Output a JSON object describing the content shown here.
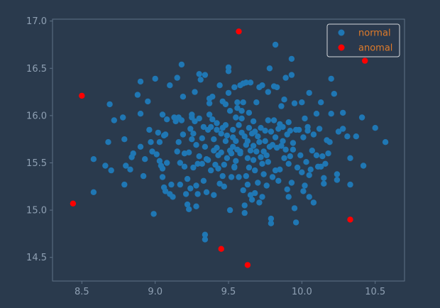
{
  "chart_data": {
    "type": "scatter",
    "xlim": [
      8.3,
      10.7
    ],
    "ylim": [
      14.25,
      17.02
    ],
    "x_ticks": [
      8.5,
      9.0,
      9.5,
      10.0,
      10.5
    ],
    "x_tick_labels": [
      "8.5",
      "9.0",
      "9.5",
      "10.0",
      "10.5"
    ],
    "y_ticks": [
      14.5,
      15.0,
      15.5,
      16.0,
      16.5,
      17.0
    ],
    "y_tick_labels": [
      "14.5",
      "15.0",
      "15.5",
      "16.0",
      "16.5",
      "17.0"
    ],
    "grid": false,
    "legend_position": "top-right",
    "colors": {
      "background": "#2a3a4d",
      "axes": "#5f7186",
      "tick_text": "#8fa0b3",
      "normal": "#1f77b4",
      "anomal": "#ff0000",
      "legend_text": "#e07b2a"
    },
    "series": [
      {
        "name": "normal",
        "color": "#1f77b4",
        "points": [
          [
            8.58,
            15.54
          ],
          [
            8.58,
            15.19
          ],
          [
            8.66,
            15.47
          ],
          [
            8.68,
            15.72
          ],
          [
            8.69,
            16.12
          ],
          [
            8.72,
            15.95
          ],
          [
            8.7,
            15.42
          ],
          [
            8.78,
            15.98
          ],
          [
            8.79,
            15.75
          ],
          [
            8.79,
            15.27
          ],
          [
            8.8,
            15.47
          ],
          [
            8.83,
            15.43
          ],
          [
            8.84,
            15.56
          ],
          [
            8.85,
            15.6
          ],
          [
            8.88,
            16.22
          ],
          [
            8.9,
            16.02
          ],
          [
            8.9,
            15.67
          ],
          [
            8.9,
            16.36
          ],
          [
            8.92,
            15.36
          ],
          [
            8.93,
            15.54
          ],
          [
            8.95,
            16.15
          ],
          [
            8.96,
            15.85
          ],
          [
            8.97,
            15.72
          ],
          [
            8.98,
            15.62
          ],
          [
            8.99,
            14.96
          ],
          [
            9.0,
            16.39
          ],
          [
            9.01,
            15.59
          ],
          [
            9.02,
            15.82
          ],
          [
            9.03,
            15.72
          ],
          [
            9.03,
            15.52
          ],
          [
            9.04,
            15.47
          ],
          [
            9.05,
            15.35
          ],
          [
            9.05,
            15.44
          ],
          [
            9.05,
            16.01
          ],
          [
            9.06,
            15.79
          ],
          [
            9.06,
            15.24
          ],
          [
            9.07,
            15.8
          ],
          [
            9.07,
            15.2
          ],
          [
            9.08,
            15.5
          ],
          [
            9.08,
            15.96
          ],
          [
            9.1,
            16.32
          ],
          [
            9.1,
            15.17
          ],
          [
            9.11,
            15.27
          ],
          [
            9.12,
            15.14
          ],
          [
            9.13,
            15.98
          ],
          [
            9.14,
            15.94
          ],
          [
            9.15,
            16.4
          ],
          [
            9.15,
            15.62
          ],
          [
            9.16,
            15.72
          ],
          [
            9.16,
            15.98
          ],
          [
            9.17,
            15.5
          ],
          [
            9.17,
            15.27
          ],
          [
            9.18,
            16.54
          ],
          [
            9.18,
            15.95
          ],
          [
            9.19,
            15.8
          ],
          [
            9.19,
            16.2
          ],
          [
            9.2,
            15.6
          ],
          [
            9.2,
            15.46
          ],
          [
            9.21,
            15.17
          ],
          [
            9.22,
            15.06
          ],
          [
            9.22,
            15.33
          ],
          [
            9.23,
            15.61
          ],
          [
            9.23,
            15.01
          ],
          [
            9.24,
            15.86
          ],
          [
            9.24,
            15.23
          ],
          [
            9.25,
            16.01
          ],
          [
            9.25,
            15.75
          ],
          [
            9.25,
            15.98
          ],
          [
            9.26,
            15.45
          ],
          [
            9.26,
            15.81
          ],
          [
            9.27,
            16.25
          ],
          [
            9.27,
            15.94
          ],
          [
            9.28,
            15.69
          ],
          [
            9.28,
            15.26
          ],
          [
            9.28,
            15.04
          ],
          [
            9.29,
            15.49
          ],
          [
            9.29,
            15.17
          ],
          [
            9.3,
            15.97
          ],
          [
            9.3,
            15.57
          ],
          [
            9.3,
            16.44
          ],
          [
            9.31,
            16.38
          ],
          [
            9.32,
            15.76
          ],
          [
            9.32,
            15.49
          ],
          [
            9.33,
            15.31
          ],
          [
            9.33,
            15.88
          ],
          [
            9.34,
            15.67
          ],
          [
            9.34,
            16.43
          ],
          [
            9.34,
            14.74
          ],
          [
            9.34,
            14.69
          ],
          [
            9.35,
            15.54
          ],
          [
            9.35,
            15.19
          ],
          [
            9.36,
            15.85
          ],
          [
            9.36,
            15.53
          ],
          [
            9.37,
            16.13
          ],
          [
            9.37,
            16.18
          ],
          [
            9.37,
            16.01
          ],
          [
            9.38,
            15.42
          ],
          [
            9.38,
            15.88
          ],
          [
            9.39,
            15.96
          ],
          [
            9.39,
            16.2
          ],
          [
            9.4,
            15.63
          ],
          [
            9.4,
            15.16
          ],
          [
            9.4,
            15.75
          ],
          [
            9.41,
            15.48
          ],
          [
            9.42,
            15.92
          ],
          [
            9.42,
            15.85
          ],
          [
            9.42,
            15.66
          ],
          [
            9.43,
            15.44
          ],
          [
            9.43,
            15.58
          ],
          [
            9.44,
            16.32
          ],
          [
            9.44,
            15.28
          ],
          [
            9.45,
            15.81
          ],
          [
            9.45,
            15.61
          ],
          [
            9.46,
            15.36
          ],
          [
            9.46,
            15.87
          ],
          [
            9.46,
            16.15
          ],
          [
            9.47,
            15.48
          ],
          [
            9.47,
            15.25
          ],
          [
            9.48,
            15.73
          ],
          [
            9.48,
            15.9
          ],
          [
            9.48,
            16.12
          ],
          [
            9.49,
            15.55
          ],
          [
            9.49,
            15.79
          ],
          [
            9.5,
            16.51
          ],
          [
            9.5,
            16.47
          ],
          [
            9.5,
            16.24
          ],
          [
            9.51,
            15.63
          ],
          [
            9.51,
            15.0
          ],
          [
            9.51,
            16.05
          ],
          [
            9.52,
            15.35
          ],
          [
            9.52,
            15.6
          ],
          [
            9.53,
            15.85
          ],
          [
            9.53,
            15.77
          ],
          [
            9.53,
            15.67
          ],
          [
            9.54,
            15.46
          ],
          [
            9.54,
            16.3
          ],
          [
            9.54,
            15.45
          ],
          [
            9.55,
            15.98
          ],
          [
            9.55,
            15.73
          ],
          [
            9.55,
            15.52
          ],
          [
            9.56,
            16.08
          ],
          [
            9.56,
            16.14
          ],
          [
            9.56,
            15.64
          ],
          [
            9.57,
            15.35
          ],
          [
            9.57,
            15.9
          ],
          [
            9.58,
            15.6
          ],
          [
            9.58,
            15.62
          ],
          [
            9.58,
            16.32
          ],
          [
            9.59,
            15.97
          ],
          [
            9.59,
            16.05
          ],
          [
            9.59,
            15.82
          ],
          [
            9.6,
            16.34
          ],
          [
            9.6,
            16.14
          ],
          [
            9.6,
            15.21
          ],
          [
            9.61,
            15.78
          ],
          [
            9.61,
            15.05
          ],
          [
            9.61,
            14.97
          ],
          [
            9.62,
            15.69
          ],
          [
            9.62,
            16.35
          ],
          [
            9.62,
            15.36
          ],
          [
            9.63,
            15.27
          ],
          [
            9.63,
            15.55
          ],
          [
            9.63,
            15.73
          ],
          [
            9.64,
            15.45
          ],
          [
            9.64,
            16.03
          ],
          [
            9.64,
            15.87
          ],
          [
            9.65,
            16.35
          ],
          [
            9.65,
            15.16
          ],
          [
            9.65,
            15.63
          ],
          [
            9.66,
            15.81
          ],
          [
            9.66,
            15.11
          ],
          [
            9.67,
            15.53
          ],
          [
            9.67,
            15.94
          ],
          [
            9.67,
            15.68
          ],
          [
            9.68,
            15.83
          ],
          [
            9.68,
            15.18
          ],
          [
            9.68,
            15.42
          ],
          [
            9.69,
            16.14
          ],
          [
            9.69,
            15.62
          ],
          [
            9.7,
            15.29
          ],
          [
            9.7,
            15.78
          ],
          [
            9.71,
            16.3
          ],
          [
            9.71,
            15.72
          ],
          [
            9.71,
            15.08
          ],
          [
            9.72,
            15.56
          ],
          [
            9.72,
            15.87
          ],
          [
            9.73,
            16.32
          ],
          [
            9.73,
            15.14
          ],
          [
            9.73,
            15.49
          ],
          [
            9.74,
            15.38
          ],
          [
            9.74,
            15.62
          ],
          [
            9.75,
            15.73
          ],
          [
            9.75,
            15.84
          ],
          [
            9.76,
            15.58
          ],
          [
            9.76,
            15.26
          ],
          [
            9.77,
            15.51
          ],
          [
            9.77,
            15.95
          ],
          [
            9.77,
            16.25
          ],
          [
            9.78,
            16.5
          ],
          [
            9.78,
            15.67
          ],
          [
            9.79,
            14.86
          ],
          [
            9.79,
            14.91
          ],
          [
            9.79,
            15.83
          ],
          [
            9.8,
            15.35
          ],
          [
            9.8,
            15.69
          ],
          [
            9.81,
            15.95
          ],
          [
            9.81,
            16.31
          ],
          [
            9.82,
            15.42
          ],
          [
            9.82,
            15.77
          ],
          [
            9.82,
            16.75
          ],
          [
            9.83,
            16.3
          ],
          [
            9.83,
            15.66
          ],
          [
            9.84,
            15.86
          ],
          [
            9.84,
            15.31
          ],
          [
            9.85,
            15.91
          ],
          [
            9.85,
            15.43
          ],
          [
            9.86,
            16.1
          ],
          [
            9.86,
            15.68
          ],
          [
            9.87,
            15.73
          ],
          [
            9.87,
            15.88
          ],
          [
            9.88,
            16.17
          ],
          [
            9.88,
            15.55
          ],
          [
            9.89,
            16.4
          ],
          [
            9.89,
            15.64
          ],
          [
            9.9,
            15.8
          ],
          [
            9.9,
            15.22
          ],
          [
            9.91,
            15.93
          ],
          [
            9.91,
            15.49
          ],
          [
            9.91,
            15.14
          ],
          [
            9.92,
            15.84
          ],
          [
            9.92,
            15.57
          ],
          [
            9.93,
            16.43
          ],
          [
            9.93,
            16.6
          ],
          [
            9.93,
            15.29
          ],
          [
            9.94,
            15.71
          ],
          [
            9.94,
            15.64
          ],
          [
            9.95,
            16.13
          ],
          [
            9.95,
            15.02
          ],
          [
            9.96,
            14.87
          ],
          [
            9.96,
            15.85
          ],
          [
            9.97,
            15.45
          ],
          [
            9.98,
            15.85
          ],
          [
            9.99,
            15.58
          ],
          [
            10.0,
            16.14
          ],
          [
            10.0,
            15.4
          ],
          [
            10.01,
            15.77
          ],
          [
            10.01,
            15.2
          ],
          [
            10.02,
            15.26
          ],
          [
            10.02,
            15.97
          ],
          [
            10.03,
            15.51
          ],
          [
            10.04,
            15.88
          ],
          [
            10.04,
            15.84
          ],
          [
            10.05,
            16.24
          ],
          [
            10.05,
            15.37
          ],
          [
            10.05,
            15.14
          ],
          [
            10.06,
            15.43
          ],
          [
            10.07,
            15.63
          ],
          [
            10.08,
            15.8
          ],
          [
            10.08,
            15.08
          ],
          [
            10.1,
            15.58
          ],
          [
            10.1,
            16.02
          ],
          [
            10.11,
            15.46
          ],
          [
            10.12,
            15.86
          ],
          [
            10.13,
            16.14
          ],
          [
            10.13,
            15.46
          ],
          [
            10.14,
            15.57
          ],
          [
            10.15,
            15.28
          ],
          [
            10.15,
            15.34
          ],
          [
            10.16,
            15.49
          ],
          [
            10.17,
            15.74
          ],
          [
            10.18,
            15.6
          ],
          [
            10.19,
            15.72
          ],
          [
            10.2,
            16.02
          ],
          [
            10.2,
            16.39
          ],
          [
            10.22,
            16.23
          ],
          [
            10.24,
            15.38
          ],
          [
            10.24,
            15.32
          ],
          [
            10.25,
            15.83
          ],
          [
            10.28,
            16.03
          ],
          [
            10.28,
            15.86
          ],
          [
            10.31,
            15.78
          ],
          [
            10.33,
            15.27
          ],
          [
            10.33,
            15.55
          ],
          [
            10.37,
            15.78
          ],
          [
            10.41,
            15.98
          ],
          [
            10.42,
            15.47
          ],
          [
            10.5,
            15.87
          ],
          [
            10.57,
            15.72
          ]
        ]
      },
      {
        "name": "anomal",
        "color": "#ff0000",
        "points": [
          [
            8.5,
            16.21
          ],
          [
            8.44,
            15.07
          ],
          [
            9.45,
            14.59
          ],
          [
            9.57,
            16.89
          ],
          [
            9.63,
            14.42
          ],
          [
            10.33,
            14.9
          ],
          [
            10.43,
            16.58
          ]
        ]
      }
    ]
  }
}
